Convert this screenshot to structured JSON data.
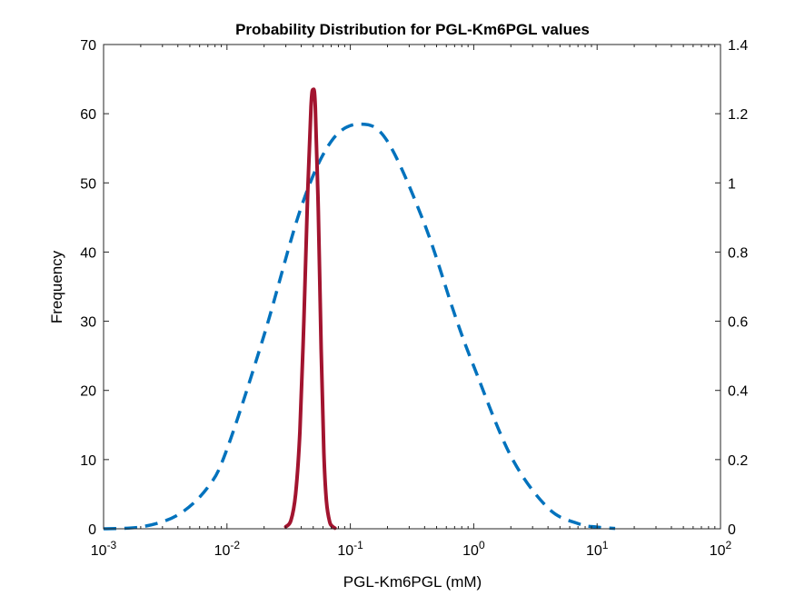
{
  "chart_data": {
    "type": "line",
    "title": "Probability Distribution for PGL-Km6PGL values",
    "xlabel": "PGL-Km6PGL (mM)",
    "ylabel_left": "Frequency",
    "ylabel_right": "",
    "x_scale": "log",
    "xlim": [
      0.001,
      100
    ],
    "x_ticks": [
      {
        "base": "10",
        "exp": "-3",
        "value": 0.001
      },
      {
        "base": "10",
        "exp": "-2",
        "value": 0.01
      },
      {
        "base": "10",
        "exp": "-1",
        "value": 0.1
      },
      {
        "base": "10",
        "exp": "0",
        "value": 1
      },
      {
        "base": "10",
        "exp": "1",
        "value": 10
      },
      {
        "base": "10",
        "exp": "2",
        "value": 100
      }
    ],
    "ylim_left": [
      0,
      70
    ],
    "y_ticks_left": [
      "0",
      "10",
      "20",
      "30",
      "40",
      "50",
      "60",
      "70"
    ],
    "ylim_right": [
      0,
      1.4
    ],
    "y_ticks_right": [
      "0",
      "0.2",
      "0.4",
      "0.6",
      "0.8",
      "1",
      "1.2",
      "1.4"
    ],
    "grid": false,
    "legend": "none",
    "series": [
      {
        "style": "solid",
        "color": "#A2142F",
        "axis": "left",
        "x": [
          0.03,
          0.033,
          0.036,
          0.039,
          0.042,
          0.045,
          0.048,
          0.05,
          0.052,
          0.055,
          0.058,
          0.061,
          0.064,
          0.068,
          0.072,
          0.075
        ],
        "y": [
          0.3,
          1.2,
          5,
          14,
          30,
          48,
          61,
          63.5,
          61,
          46,
          26,
          11,
          4,
          1,
          0.3,
          0.1
        ]
      },
      {
        "style": "dashed",
        "color": "#0072BD",
        "axis": "right",
        "x": [
          0.001,
          0.002,
          0.004,
          0.007,
          0.01,
          0.02,
          0.04,
          0.07,
          0.12,
          0.2,
          0.4,
          0.7,
          1,
          2,
          4,
          7,
          10,
          14
        ],
        "y": [
          0.0,
          0.005,
          0.04,
          0.12,
          0.23,
          0.56,
          0.93,
          1.12,
          1.17,
          1.12,
          0.88,
          0.62,
          0.47,
          0.21,
          0.06,
          0.015,
          0.005,
          0.001
        ]
      }
    ]
  }
}
